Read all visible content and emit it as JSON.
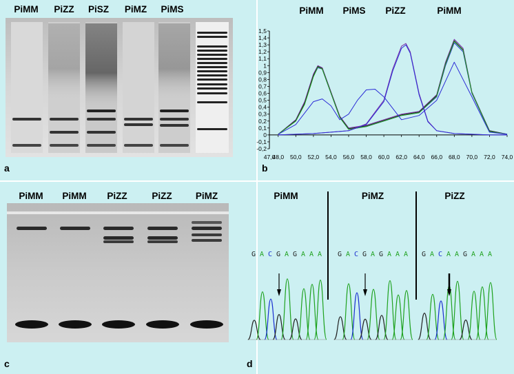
{
  "figure": {
    "panels": {
      "a": {
        "letter": "a",
        "lanes": [
          "PiMM",
          "PiZZ",
          "PiSZ",
          "PiMZ",
          "PiMS"
        ]
      },
      "b": {
        "letter": "b",
        "peak_labels": [
          "PiMM",
          "PiMS",
          "PiZZ",
          "PiMM"
        ]
      },
      "c": {
        "letter": "c",
        "lanes": [
          "PiMM",
          "PiMM",
          "PiZZ",
          "PiZZ",
          "PiMZ"
        ]
      },
      "d": {
        "letter": "d",
        "sections": [
          {
            "label": "PiMM",
            "sequence": [
              "G",
              "A",
              "C",
              "G",
              "A",
              "G",
              "A",
              "A",
              "A"
            ]
          },
          {
            "label": "PiMZ",
            "sequence": [
              "G",
              "A",
              "C",
              "G",
              "A",
              "G",
              "A",
              "A",
              "A"
            ]
          },
          {
            "label": "PiZZ",
            "sequence": [
              "G",
              "A",
              "C",
              "A",
              "A",
              "G",
              "A",
              "A",
              "A"
            ]
          }
        ]
      }
    },
    "colors": {
      "background": "#ccf0f2",
      "base_G": "#222222",
      "base_A": "#1fa21f",
      "base_C": "#1a2fd0",
      "curve_blue": "#2b2bd6",
      "curve_purple": "#7a2fa8"
    }
  },
  "chart_data": {
    "type": "line",
    "title": "",
    "xlabel": "",
    "ylabel": "",
    "xlim": [
      47.0,
      74.0
    ],
    "ylim": [
      -0.2,
      1.5
    ],
    "x_ticks": [
      "47,0",
      "48,0",
      "50,0",
      "52,0",
      "54,0",
      "56,0",
      "58,0",
      "60,0",
      "62,0",
      "64,0",
      "66,0",
      "68,0",
      "70,0",
      "72,0",
      "74,0"
    ],
    "y_ticks": [
      "1,5",
      "1,4",
      "1,3",
      "1,2",
      "1,1",
      "1",
      "0,9",
      "0,8",
      "0,7",
      "0,6",
      "0,5",
      "0,4",
      "0,3",
      "0,2",
      "0,1",
      "0",
      "-0,1",
      "-0,2"
    ],
    "series": [
      {
        "color": "#2b2bd6",
        "x": [
          48,
          50,
          51,
          52,
          52.5,
          53,
          54,
          55,
          56,
          58,
          60,
          62,
          64,
          66,
          67,
          68,
          69,
          70,
          72,
          74
        ],
        "y": [
          0.01,
          0.2,
          0.45,
          0.85,
          0.97,
          0.95,
          0.6,
          0.25,
          0.08,
          0.12,
          0.2,
          0.28,
          0.32,
          0.55,
          1.0,
          1.33,
          1.2,
          0.6,
          0.05,
          0.01
        ]
      },
      {
        "color": "#7a2fa8",
        "x": [
          48,
          50,
          51,
          52,
          52.5,
          53,
          54,
          55,
          56,
          58,
          60,
          62,
          64,
          66,
          67,
          68,
          69,
          70,
          72,
          74
        ],
        "y": [
          0.01,
          0.22,
          0.48,
          0.88,
          1.0,
          0.97,
          0.62,
          0.27,
          0.1,
          0.14,
          0.22,
          0.3,
          0.34,
          0.58,
          1.05,
          1.38,
          1.25,
          0.62,
          0.06,
          0.01
        ]
      },
      {
        "color": "#2a2a2a",
        "x": [
          48,
          50,
          51,
          52,
          52.5,
          53,
          54,
          55,
          56,
          58,
          60,
          62,
          64,
          66,
          67,
          68,
          69,
          70,
          72,
          74
        ],
        "y": [
          0.01,
          0.21,
          0.46,
          0.86,
          0.99,
          0.96,
          0.61,
          0.26,
          0.09,
          0.13,
          0.21,
          0.29,
          0.33,
          0.57,
          1.03,
          1.36,
          1.23,
          0.61,
          0.06,
          0.01
        ]
      },
      {
        "color": "#1fa21f",
        "x": [
          48,
          50,
          51,
          52,
          52.5,
          53,
          54,
          55,
          56,
          58,
          60,
          62,
          64,
          66,
          67,
          68,
          69,
          70,
          72,
          74
        ],
        "y": [
          0.01,
          0.2,
          0.44,
          0.84,
          0.98,
          0.95,
          0.6,
          0.25,
          0.08,
          0.12,
          0.2,
          0.28,
          0.32,
          0.56,
          1.02,
          1.35,
          1.22,
          0.61,
          0.05,
          0.01
        ]
      },
      {
        "color": "#2b2bd6",
        "x": [
          48,
          50,
          52,
          53,
          54,
          55,
          56,
          57,
          58,
          59,
          60,
          62,
          64,
          66,
          68,
          70,
          72,
          74
        ],
        "y": [
          0.01,
          0.15,
          0.48,
          0.52,
          0.42,
          0.22,
          0.3,
          0.5,
          0.65,
          0.66,
          0.55,
          0.22,
          0.28,
          0.5,
          1.05,
          0.55,
          0.04,
          0.01
        ]
      },
      {
        "color": "#7a2fa8",
        "x": [
          48,
          52,
          54,
          56,
          58,
          60,
          61,
          62,
          62.5,
          63,
          64,
          65,
          66,
          68,
          70,
          72,
          74
        ],
        "y": [
          0.0,
          0.02,
          0.04,
          0.06,
          0.16,
          0.5,
          0.95,
          1.28,
          1.32,
          1.2,
          0.6,
          0.2,
          0.06,
          0.02,
          0.01,
          0.0,
          0.0
        ]
      },
      {
        "color": "#2b2bd6",
        "x": [
          48,
          52,
          54,
          56,
          58,
          60,
          61,
          62,
          62.5,
          63,
          64,
          65,
          66,
          68,
          70,
          72,
          74
        ],
        "y": [
          0.0,
          0.02,
          0.04,
          0.06,
          0.15,
          0.48,
          0.92,
          1.25,
          1.3,
          1.18,
          0.58,
          0.19,
          0.06,
          0.02,
          0.01,
          0.0,
          0.0
        ]
      }
    ]
  }
}
